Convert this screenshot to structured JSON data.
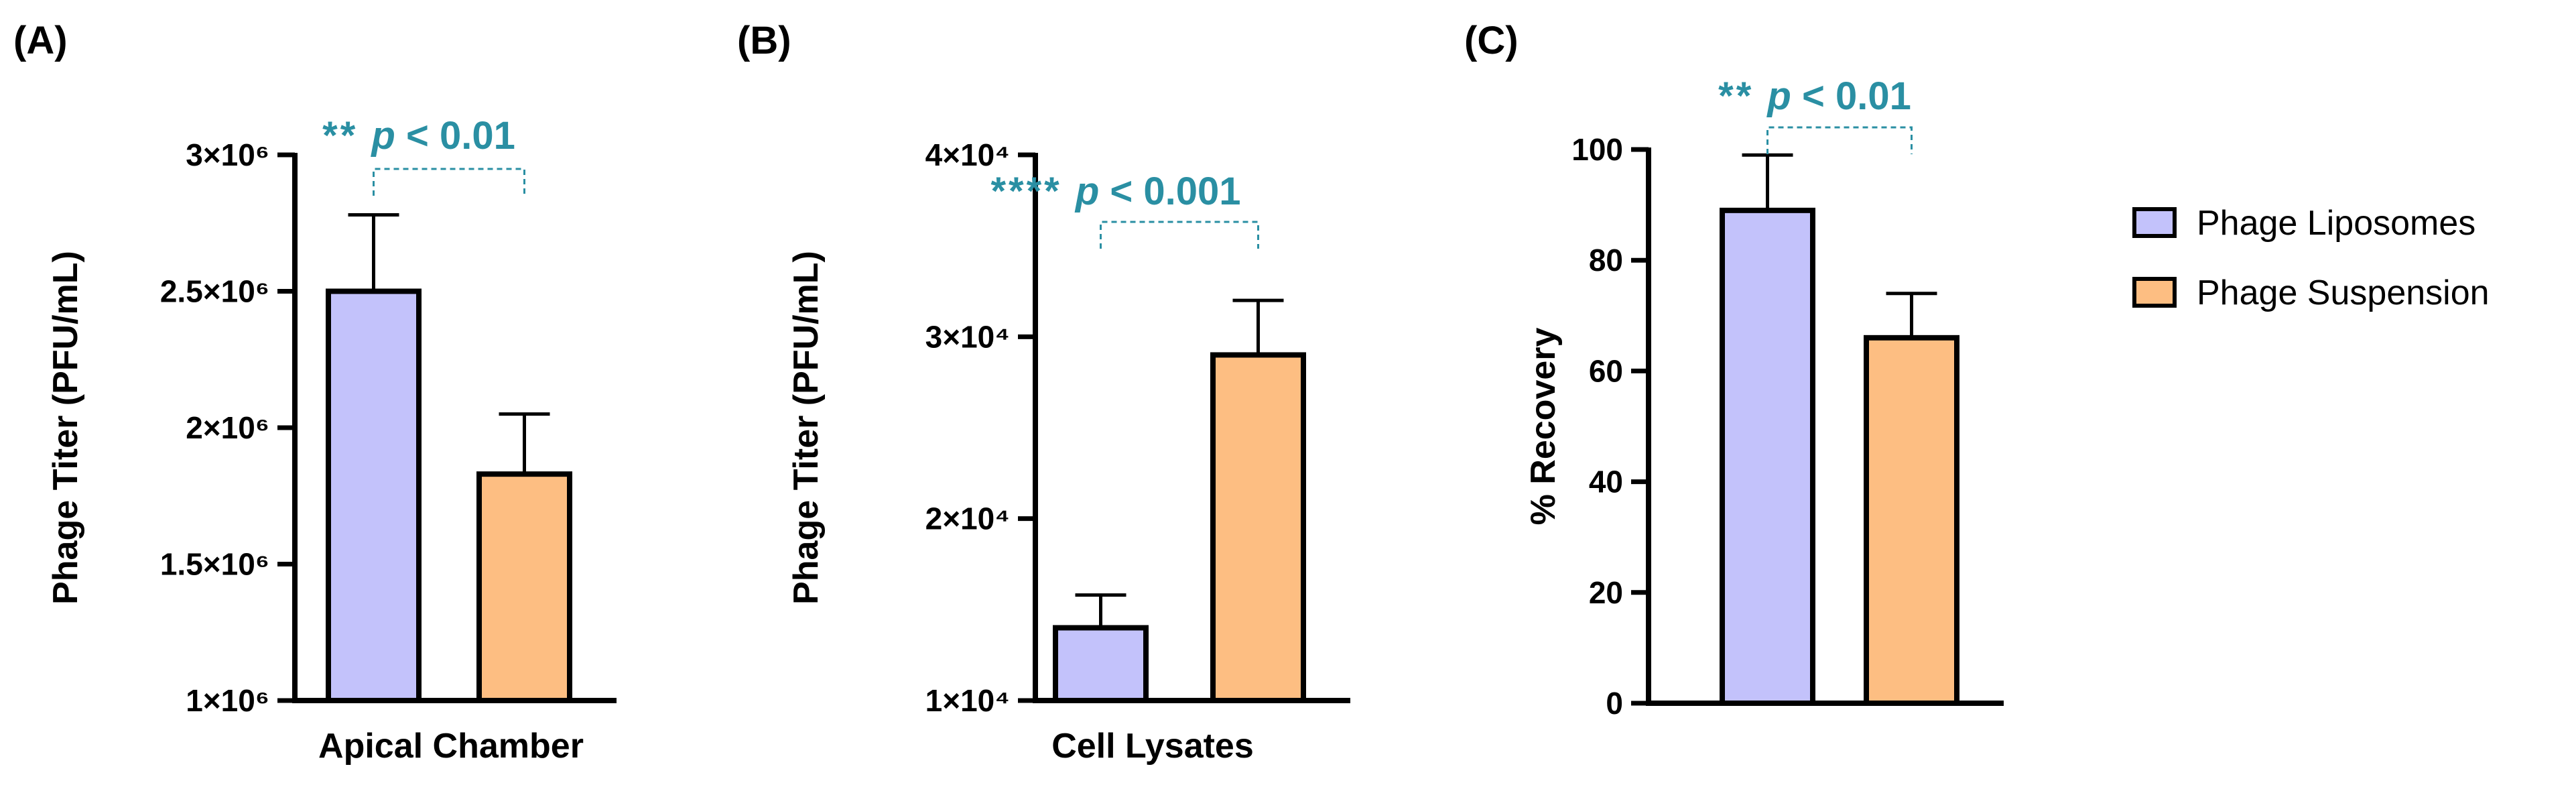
{
  "colors": {
    "liposomes": "#c3c2fb",
    "suspension": "#fdbe82",
    "significance": "#2a8fa3",
    "axis": "#000000"
  },
  "legend": {
    "items": [
      {
        "label": "Phage Liposomes",
        "color": "#c3c2fb"
      },
      {
        "label": "Phage Suspension",
        "color": "#fdbe82"
      }
    ]
  },
  "chart_data": [
    {
      "type": "bar",
      "panel": "(A)",
      "ylabel": "Phage Titer (PFU/mL)",
      "xlabel": "Apical Chamber",
      "ylim": [
        1000000,
        3000000
      ],
      "yticks": [
        1000000,
        1500000,
        2000000,
        2500000,
        3000000
      ],
      "ytick_labels": [
        "1×10⁶",
        "1.5×10⁶",
        "2×10⁶",
        "2.5×10⁶",
        "3×10⁶"
      ],
      "series": [
        {
          "name": "Phage Liposomes",
          "value": 2500000,
          "error": 280000
        },
        {
          "name": "Phage Suspension",
          "value": 1830000,
          "error": 220000
        }
      ],
      "significance": {
        "stars": "**",
        "p_label": "p",
        "text": " < 0.01"
      }
    },
    {
      "type": "bar",
      "panel": "(B)",
      "ylabel": "Phage Titer (PFU/mL)",
      "xlabel": "Cell Lysates",
      "ylim": [
        10000,
        40000
      ],
      "yticks": [
        10000,
        20000,
        30000,
        40000
      ],
      "ytick_labels": [
        "1×10⁴",
        "2×10⁴",
        "3×10⁴",
        "4×10⁴"
      ],
      "series": [
        {
          "name": "Phage Liposomes",
          "value": 14000,
          "error": 1800
        },
        {
          "name": "Phage Suspension",
          "value": 29000,
          "error": 3000
        }
      ],
      "significance": {
        "stars": "****",
        "p_label": "p",
        "text": " < 0.001"
      }
    },
    {
      "type": "bar",
      "panel": "(C)",
      "ylabel": "% Recovery",
      "xlabel": "",
      "ylim": [
        0,
        100
      ],
      "yticks": [
        0,
        20,
        40,
        60,
        80,
        100
      ],
      "ytick_labels": [
        "0",
        "20",
        "40",
        "60",
        "80",
        "100"
      ],
      "series": [
        {
          "name": "Phage Liposomes",
          "value": 89,
          "error": 10
        },
        {
          "name": "Phage Suspension",
          "value": 66,
          "error": 8
        }
      ],
      "significance": {
        "stars": "**",
        "p_label": "p",
        "text": " < 0.01"
      }
    }
  ]
}
